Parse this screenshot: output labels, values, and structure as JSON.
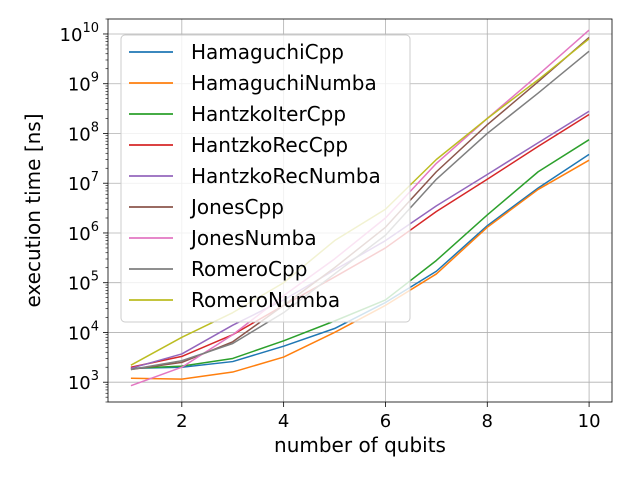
{
  "chart_data": {
    "type": "line",
    "xlabel": "number of qubits",
    "ylabel": "execution time [ns]",
    "xlim": [
      0.55,
      10.45
    ],
    "ylim": [
      400,
      20000000000
    ],
    "yscale": "log",
    "grid": true,
    "legend_position": "upper-left",
    "x_ticks": [
      2,
      4,
      6,
      8,
      10
    ],
    "y_ticks": [
      {
        "value": 1000,
        "base": "10",
        "exp": "3"
      },
      {
        "value": 10000,
        "base": "10",
        "exp": "4"
      },
      {
        "value": 100000,
        "base": "10",
        "exp": "5"
      },
      {
        "value": 1000000,
        "base": "10",
        "exp": "6"
      },
      {
        "value": 10000000,
        "base": "10",
        "exp": "7"
      },
      {
        "value": 100000000,
        "base": "10",
        "exp": "8"
      },
      {
        "value": 1000000000,
        "base": "10",
        "exp": "9"
      },
      {
        "value": 10000000000,
        "base": "10",
        "exp": "10"
      }
    ],
    "x": [
      1,
      2,
      3,
      4,
      5,
      6,
      7,
      8,
      9,
      10
    ],
    "series": [
      {
        "name": "HamaguchiCpp",
        "color": "#1f77b4",
        "values": [
          1900,
          2000,
          2600,
          5300,
          12000,
          40000,
          170000,
          1400000,
          8000000,
          38000000
        ]
      },
      {
        "name": "HamaguchiNumba",
        "color": "#ff7f0e",
        "values": [
          1200,
          1150,
          1600,
          3200,
          10000,
          35000,
          150000,
          1300000,
          7500000,
          29000000
        ]
      },
      {
        "name": "HantzkoIterCpp",
        "color": "#2ca02c",
        "values": [
          1900,
          2100,
          3000,
          6800,
          17000,
          45000,
          280000,
          2300000,
          17000000,
          75000000
        ]
      },
      {
        "name": "HantzkoRecCpp",
        "color": "#d62728",
        "values": [
          2000,
          3300,
          9000,
          35000,
          130000,
          500000,
          2700000,
          12000000,
          55000000,
          240000000
        ]
      },
      {
        "name": "HantzkoRecNumba",
        "color": "#9467bd",
        "values": [
          1900,
          3700,
          14000,
          45000,
          180000,
          700000,
          3500000,
          15000000,
          65000000,
          280000000
        ]
      },
      {
        "name": "JonesCpp",
        "color": "#8c564b",
        "values": [
          1800,
          2500,
          6500,
          35000,
          200000,
          1300000,
          17000000,
          150000000,
          1100000000,
          8500000000
        ]
      },
      {
        "name": "JonesNumba",
        "color": "#e377c2",
        "values": [
          850,
          2000,
          9000,
          55000,
          300000,
          2000000,
          25000000,
          200000000,
          1500000000,
          12000000000
        ]
      },
      {
        "name": "RomeroCpp",
        "color": "#7f7f7f",
        "values": [
          1800,
          2700,
          6000,
          25000,
          150000,
          900000,
          12000000,
          100000000,
          650000000,
          4500000000
        ]
      },
      {
        "name": "RomeroNumba",
        "color": "#bcbd22",
        "values": [
          2200,
          8000,
          25000,
          100000,
          700000,
          3000000,
          30000000,
          200000000,
          1200000000,
          8000000000
        ]
      }
    ]
  }
}
